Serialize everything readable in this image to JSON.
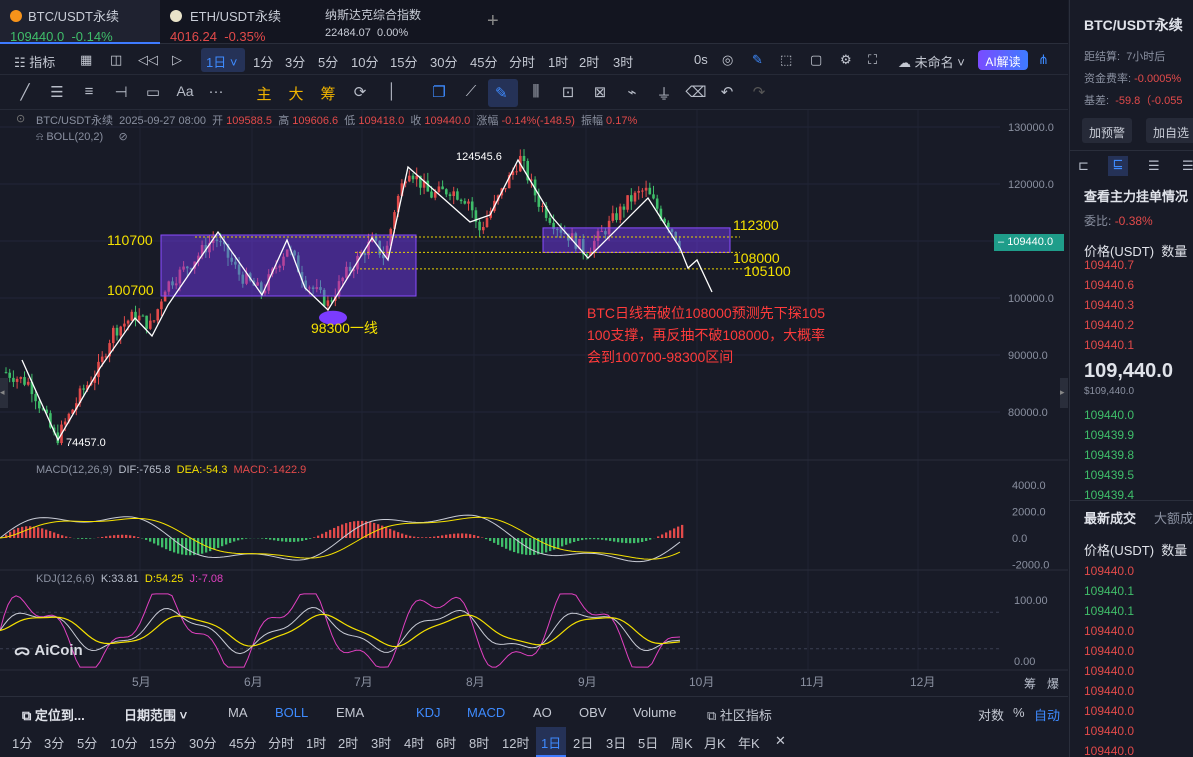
{
  "tabs": [
    {
      "name": "BTC/USDT永续",
      "price": "109440.0",
      "change": "-0.14%"
    },
    {
      "name": "ETH/USDT永续",
      "price": "4016.24",
      "change": "-0.35%"
    },
    {
      "name": "纳斯达克综合指数",
      "price": "22484.07",
      "change": "0.00%"
    }
  ],
  "add_tab": "+",
  "toolbar": {
    "indicator": "指标",
    "period": "1日",
    "intervals": [
      "1分",
      "3分",
      "5分",
      "10分",
      "15分",
      "30分",
      "45分",
      "分时",
      "1时",
      "2时",
      "3时"
    ],
    "zero_s": "0s",
    "layout_name": "未命名",
    "ai": "AI解读"
  },
  "draw_tools": {
    "zhu": "主",
    "da": "大",
    "chou": "筹",
    "aa": "Aa",
    "more": "···"
  },
  "legend": {
    "symbol": "BTC/USDT永续",
    "date": "2025-09-27 08:00",
    "open_label": "开",
    "open": "109588.5",
    "high_label": "高",
    "high": "109606.6",
    "low_label": "低",
    "low": "109418.0",
    "close_label": "收",
    "close": "109440.0",
    "chg_label": "涨幅",
    "chg": "-0.14%(-148.5)",
    "amp_label": "振幅",
    "amp": "0.17%",
    "boll": "BOLL(20,2)"
  },
  "price_axis": [
    "130000.0",
    "120000.0",
    "110000.0",
    "100000.0",
    "90000.0",
    "80000.0"
  ],
  "current_price": "109440.0",
  "annotations": {
    "high1": "124545.6",
    "low1": "74457.0",
    "lvl_110700": "110700",
    "lvl_100700": "100700",
    "lvl_98300": "98300一线",
    "lvl_112300": "112300",
    "lvl_108000": "108000",
    "lvl_105100": "105100",
    "note": [
      "BTC日线若破位108000预测先下探105",
      "100支撑，再反抽不破108000，大概率",
      "会到100700-98300区间"
    ]
  },
  "macd": {
    "label": "MACD(12,26,9)",
    "dif": "DIF:-765.8",
    "dea": "DEA:-54.3",
    "macd": "MACD:-1422.9",
    "axis": [
      "4000.0",
      "2000.0",
      "0.0",
      "-2000.0"
    ]
  },
  "kdj": {
    "label": "KDJ(12,6,6)",
    "k": "K:33.81",
    "d": "D:54.25",
    "j": "J:-7.08",
    "axis": [
      "100.00",
      "0.00"
    ]
  },
  "logo": "AiCoin",
  "months": [
    "5月",
    "6月",
    "7月",
    "8月",
    "9月",
    "10月",
    "11月",
    "12月"
  ],
  "corner": [
    "筹",
    "爆"
  ],
  "bottom1": {
    "locate": "定位到...",
    "range": "日期范围",
    "inds": [
      "MA",
      "BOLL",
      "EMA",
      "KDJ",
      "MACD",
      "AO",
      "OBV",
      "Volume"
    ],
    "community": "社区指标",
    "log": "对数",
    "pct": "%",
    "auto": "自动"
  },
  "bottom2": [
    "1分",
    "3分",
    "5分",
    "10分",
    "15分",
    "30分",
    "45分",
    "分时",
    "1时",
    "2时",
    "3时",
    "4时",
    "6时",
    "8时",
    "12时",
    "1日",
    "2日",
    "3日",
    "5日",
    "周K",
    "月K",
    "年K"
  ],
  "right": {
    "title": "BTC/USDT永续",
    "settle": "距结算:",
    "settle_v": "7小时后",
    "fee": "资金费率:",
    "fee_v": "-0.0005%",
    "basis": "基差:",
    "basis_v": "-59.8（-0.055",
    "btn1": "加预警",
    "btn2": "加自选",
    "orderbook_title": "查看主力挂单情况",
    "ratio": "委比:",
    "ratio_v": "-0.38%",
    "col_price": "价格(USDT)",
    "col_qty": "数量",
    "asks": [
      "109440.7",
      "109440.6",
      "109440.3",
      "109440.2",
      "109440.1"
    ],
    "mid": "109,440.0",
    "mid_sub": "$109,440.0",
    "bids": [
      "109440.0",
      "109439.9",
      "109439.8",
      "109439.5",
      "109439.4"
    ],
    "trades_tab1": "最新成交",
    "trades_tab2": "大额成",
    "trades": [
      [
        "109440.0",
        "red"
      ],
      [
        "109440.1",
        "green"
      ],
      [
        "109440.1",
        "green"
      ],
      [
        "109440.0",
        "red"
      ],
      [
        "109440.0",
        "red"
      ],
      [
        "109440.0",
        "red"
      ],
      [
        "109440.0",
        "red"
      ],
      [
        "109440.0",
        "red"
      ],
      [
        "109440.0",
        "red"
      ],
      [
        "109440.0",
        "red"
      ]
    ]
  },
  "colors": {
    "up": "#e24a4a",
    "down": "#3fbe6a",
    "accent": "#3e7bff",
    "annot_yellow": "#f5e100",
    "annot_red": "#ff3b3b",
    "box": "#7b3cff"
  }
}
